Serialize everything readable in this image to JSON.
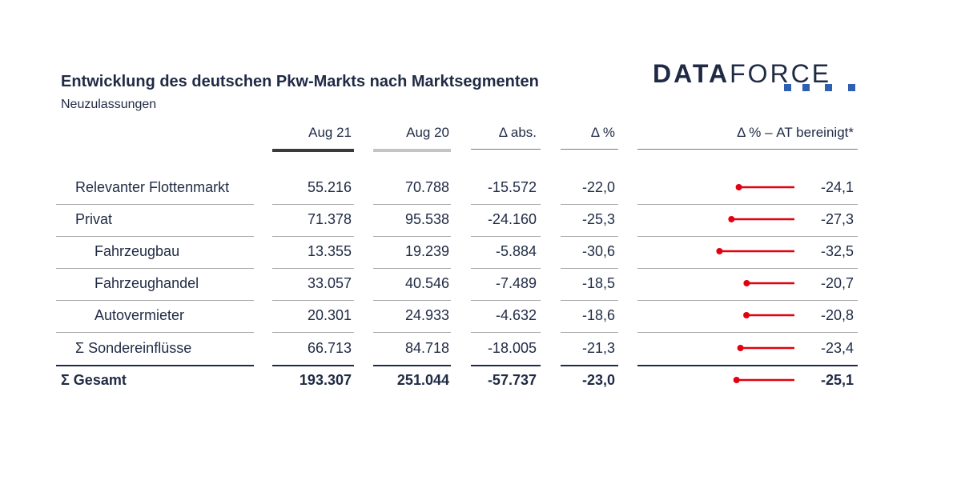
{
  "title": "Entwicklung des deutschen Pkw-Markts nach Marktsegmenten",
  "subtitle": "Neuzulassungen",
  "logo": {
    "part1": "DATA",
    "part2": "FORCE"
  },
  "colors": {
    "text": "#1f2a44",
    "bar": "#e3000f",
    "accent": "#2f5fb0"
  },
  "chart_data": {
    "type": "table",
    "columns": [
      "Aug 21",
      "Aug 20",
      "Δ abs.",
      "Δ %",
      "Δ % – AT bereinigt*"
    ],
    "rows": [
      {
        "label": "Relevanter Flottenmarkt",
        "aug21": "55.216",
        "aug20": "70.788",
        "dabs": "-15.572",
        "dpct": "-22,0",
        "at_label": "-24,1",
        "at": -24.1
      },
      {
        "label": "Privat",
        "aug21": "71.378",
        "aug20": "95.538",
        "dabs": "-24.160",
        "dpct": "-25,3",
        "at_label": "-27,3",
        "at": -27.3
      },
      {
        "label": "Fahrzeugbau",
        "aug21": "13.355",
        "aug20": "19.239",
        "dabs": "-5.884",
        "dpct": "-30,6",
        "at_label": "-32,5",
        "at": -32.5
      },
      {
        "label": "Fahrzeughandel",
        "aug21": "33.057",
        "aug20": "40.546",
        "dabs": "-7.489",
        "dpct": "-18,5",
        "at_label": "-20,7",
        "at": -20.7
      },
      {
        "label": "Autovermieter",
        "aug21": "20.301",
        "aug20": "24.933",
        "dabs": "-4.632",
        "dpct": "-18,6",
        "at_label": "-20,8",
        "at": -20.8
      },
      {
        "label": "Σ Sondereinflüsse",
        "aug21": "66.713",
        "aug20": "84.718",
        "dabs": "-18.005",
        "dpct": "-21,3",
        "at_label": "-23,4",
        "at": -23.4
      },
      {
        "label": "Σ Gesamt",
        "aug21": "193.307",
        "aug20": "251.044",
        "dabs": "-57.737",
        "dpct": "-23,0",
        "at_label": "-25,1",
        "at": -25.1
      }
    ]
  }
}
